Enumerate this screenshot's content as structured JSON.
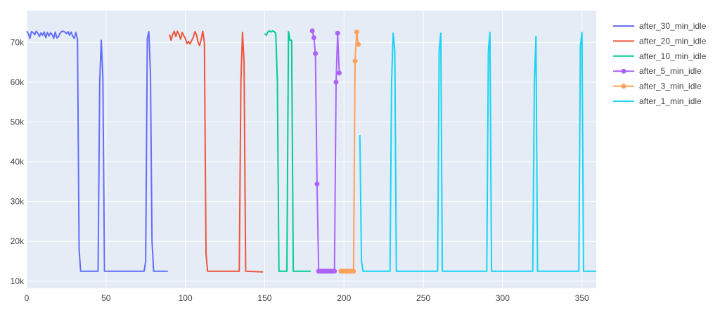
{
  "chart_data": {
    "type": "line",
    "title": "",
    "xlabel": "",
    "ylabel": "",
    "xlim": [
      0,
      359
    ],
    "ylim": [
      8200,
      78000
    ],
    "grid": true,
    "legend_position": "top-right",
    "x_ticks": [
      0,
      50,
      100,
      150,
      200,
      250,
      300,
      350
    ],
    "x_tick_labels": [
      "0",
      "50",
      "100",
      "150",
      "200",
      "250",
      "300",
      "350"
    ],
    "y_ticks": [
      10000,
      20000,
      30000,
      40000,
      50000,
      60000,
      70000
    ],
    "y_tick_labels": [
      "10k",
      "20k",
      "30k",
      "40k",
      "50k",
      "60k",
      "70k"
    ],
    "series": [
      {
        "name": "after_30_min_idle",
        "color": "#636efa",
        "markers": false,
        "points": [
          [
            0,
            72800
          ],
          [
            1,
            72200
          ],
          [
            2,
            71000
          ],
          [
            3,
            72700
          ],
          [
            4,
            72500
          ],
          [
            5,
            71900
          ],
          [
            6,
            72800
          ],
          [
            7,
            72300
          ],
          [
            8,
            71500
          ],
          [
            9,
            72400
          ],
          [
            10,
            71800
          ],
          [
            11,
            72600
          ],
          [
            12,
            71200
          ],
          [
            13,
            72500
          ],
          [
            14,
            71600
          ],
          [
            15,
            72400
          ],
          [
            16,
            72000
          ],
          [
            17,
            71000
          ],
          [
            18,
            72600
          ],
          [
            19,
            71100
          ],
          [
            20,
            71400
          ],
          [
            21,
            72300
          ],
          [
            22,
            72700
          ],
          [
            23,
            72800
          ],
          [
            24,
            72600
          ],
          [
            25,
            72200
          ],
          [
            26,
            72700
          ],
          [
            27,
            71800
          ],
          [
            28,
            72600
          ],
          [
            29,
            71600
          ],
          [
            30,
            71000
          ],
          [
            31,
            72500
          ],
          [
            32,
            70800
          ],
          [
            33,
            18000
          ],
          [
            34,
            12500
          ],
          [
            45,
            12500
          ],
          [
            46,
            60000
          ],
          [
            47,
            70500
          ],
          [
            48,
            61000
          ],
          [
            49,
            12500
          ],
          [
            74,
            12500
          ],
          [
            75,
            15000
          ],
          [
            76,
            71000
          ],
          [
            77,
            72700
          ],
          [
            78,
            62000
          ],
          [
            79,
            20000
          ],
          [
            80,
            12500
          ],
          [
            89,
            12500
          ]
        ]
      },
      {
        "name": "after_20_min_idle",
        "color": "#EF553B",
        "markers": false,
        "points": [
          [
            90,
            72000
          ],
          [
            91,
            70500
          ],
          [
            92,
            72000
          ],
          [
            93,
            72800
          ],
          [
            94,
            71500
          ],
          [
            95,
            72800
          ],
          [
            96,
            72000
          ],
          [
            97,
            70800
          ],
          [
            98,
            72500
          ],
          [
            99,
            71700
          ],
          [
            100,
            71000
          ],
          [
            101,
            69700
          ],
          [
            102,
            70200
          ],
          [
            103,
            69600
          ],
          [
            104,
            70500
          ],
          [
            105,
            71300
          ],
          [
            106,
            72700
          ],
          [
            107,
            72000
          ],
          [
            108,
            70000
          ],
          [
            109,
            69200
          ],
          [
            110,
            70800
          ],
          [
            111,
            72800
          ],
          [
            112,
            70000
          ],
          [
            113,
            17000
          ],
          [
            114,
            12500
          ],
          [
            134,
            12500
          ],
          [
            135,
            60000
          ],
          [
            136,
            72500
          ],
          [
            137,
            65000
          ],
          [
            138,
            12500
          ],
          [
            149,
            12300
          ]
        ]
      },
      {
        "name": "after_10_min_idle",
        "color": "#00cc96",
        "markers": false,
        "points": [
          [
            150,
            72200
          ],
          [
            151,
            71800
          ],
          [
            152,
            72600
          ],
          [
            153,
            72900
          ],
          [
            154,
            72600
          ],
          [
            155,
            72900
          ],
          [
            156,
            72700
          ],
          [
            157,
            72300
          ],
          [
            158,
            60000
          ],
          [
            159,
            12500
          ],
          [
            164,
            12500
          ],
          [
            165,
            72700
          ],
          [
            166,
            70500
          ],
          [
            167,
            70500
          ],
          [
            168,
            12500
          ],
          [
            179,
            12500
          ]
        ]
      },
      {
        "name": "after_5_min_idle",
        "color": "#ab63fa",
        "markers": true,
        "points": [
          [
            180,
            72900
          ],
          [
            181,
            71200
          ],
          [
            182,
            67200
          ],
          [
            183,
            34400
          ],
          [
            184,
            12500
          ],
          [
            185,
            12500
          ],
          [
            186,
            12500
          ],
          [
            187,
            12500
          ],
          [
            188,
            12500
          ],
          [
            189,
            12500
          ],
          [
            190,
            12500
          ],
          [
            191,
            12500
          ],
          [
            192,
            12500
          ],
          [
            193,
            12500
          ],
          [
            194,
            12500
          ],
          [
            195,
            60000
          ],
          [
            196,
            72300
          ],
          [
            197,
            62300
          ]
        ]
      },
      {
        "name": "after_3_min_idle",
        "color": "#FFA15A",
        "markers": true,
        "points": [
          [
            198,
            12500
          ],
          [
            199,
            12500
          ],
          [
            200,
            12500
          ],
          [
            201,
            12500
          ],
          [
            202,
            12500
          ],
          [
            203,
            12500
          ],
          [
            204,
            12500
          ],
          [
            205,
            12500
          ],
          [
            206,
            12500
          ],
          [
            207,
            65300
          ],
          [
            208,
            72600
          ],
          [
            209,
            69500
          ]
        ]
      },
      {
        "name": "after_1_min_idle",
        "color": "#19d3f3",
        "markers": false,
        "points": [
          [
            210,
            46700
          ],
          [
            211,
            15000
          ],
          [
            212,
            12500
          ],
          [
            229,
            12500
          ],
          [
            230,
            60000
          ],
          [
            231,
            72300
          ],
          [
            232,
            68000
          ],
          [
            233,
            12500
          ],
          [
            259,
            12500
          ],
          [
            260,
            68000
          ],
          [
            261,
            72300
          ],
          [
            262,
            12500
          ],
          [
            290,
            12500
          ],
          [
            291,
            68000
          ],
          [
            292,
            72500
          ],
          [
            293,
            12500
          ],
          [
            319,
            12500
          ],
          [
            320,
            60000
          ],
          [
            321,
            71500
          ],
          [
            322,
            12500
          ],
          [
            348,
            12500
          ],
          [
            349,
            69000
          ],
          [
            350,
            72500
          ],
          [
            351,
            12500
          ],
          [
            359,
            12500
          ]
        ]
      }
    ]
  }
}
